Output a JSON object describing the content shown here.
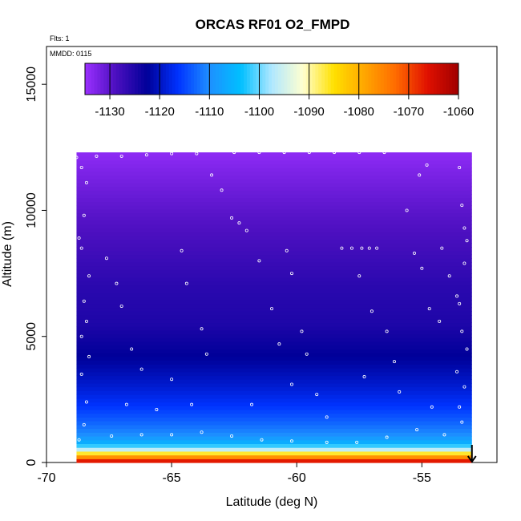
{
  "chart_data": {
    "type": "heatmap",
    "title": "ORCAS RF01 O2_FMPD",
    "xlabel": "Latitude (deg N)",
    "ylabel": "Altitude (m)",
    "xlim": [
      -70,
      -52
    ],
    "ylim": [
      0,
      16500
    ],
    "x_ticks": [
      -70,
      -65,
      -60,
      -55
    ],
    "y_ticks": [
      0,
      5000,
      10000,
      15000
    ],
    "annotations": {
      "flights": "Flts: 1",
      "date": "MMDD: 0115"
    },
    "colorbar": {
      "ticks": [
        -1130,
        -1120,
        -1110,
        -1100,
        -1090,
        -1080,
        -1070,
        -1060
      ],
      "range": [
        -1135,
        -1060
      ],
      "colors": [
        "#9b30ff",
        "#4b0fbf",
        "#000099",
        "#0033ff",
        "#1e90ff",
        "#00bfff",
        "#b0e8ff",
        "#ffffd0",
        "#ffe000",
        "#ffa500",
        "#ff6a00",
        "#e01000",
        "#a00000"
      ]
    },
    "field": {
      "lat_range": [
        -68.8,
        -53.0
      ],
      "alt_top": 12300,
      "profile": [
        {
          "alt": 0,
          "value": -1062
        },
        {
          "alt": 200,
          "value": -1075
        },
        {
          "alt": 400,
          "value": -1088
        },
        {
          "alt": 550,
          "value": -1098
        },
        {
          "alt": 800,
          "value": -1106
        },
        {
          "alt": 1100,
          "value": -1110
        },
        {
          "alt": 1600,
          "value": -1113
        },
        {
          "alt": 2200,
          "value": -1116
        },
        {
          "alt": 3000,
          "value": -1119
        },
        {
          "alt": 4000,
          "value": -1122
        },
        {
          "alt": 5500,
          "value": -1125
        },
        {
          "alt": 7000,
          "value": -1126
        },
        {
          "alt": 8500,
          "value": -1128
        },
        {
          "alt": 10000,
          "value": -1130
        },
        {
          "alt": 11200,
          "value": -1132
        },
        {
          "alt": 12300,
          "value": -1134
        }
      ]
    },
    "flight_points": [
      [
        -68.8,
        12100
      ],
      [
        -68,
        12150
      ],
      [
        -67,
        12150
      ],
      [
        -66,
        12200
      ],
      [
        -65,
        12250
      ],
      [
        -64,
        12250
      ],
      [
        -62.5,
        12300
      ],
      [
        -61.5,
        12300
      ],
      [
        -60.5,
        12300
      ],
      [
        -59.5,
        12300
      ],
      [
        -58.5,
        12300
      ],
      [
        -57.5,
        12300
      ],
      [
        -56.5,
        12300
      ],
      [
        -68.6,
        11700
      ],
      [
        -68.4,
        11100
      ],
      [
        -68.5,
        9800
      ],
      [
        -68.7,
        8900
      ],
      [
        -68.6,
        8500
      ],
      [
        -68.3,
        7400
      ],
      [
        -68.5,
        6400
      ],
      [
        -68.4,
        5600
      ],
      [
        -68.6,
        5000
      ],
      [
        -68.3,
        4200
      ],
      [
        -68.6,
        3500
      ],
      [
        -68.4,
        2400
      ],
      [
        -68.5,
        1500
      ],
      [
        -68.7,
        900
      ],
      [
        -67.6,
        8100
      ],
      [
        -67.2,
        7100
      ],
      [
        -67.0,
        6200
      ],
      [
        -66.6,
        4500
      ],
      [
        -66.2,
        3700
      ],
      [
        -65.6,
        2100
      ],
      [
        -65.0,
        3300
      ],
      [
        -64.6,
        8400
      ],
      [
        -64.4,
        7100
      ],
      [
        -63.8,
        5300
      ],
      [
        -63.6,
        4300
      ],
      [
        -63.4,
        11400
      ],
      [
        -63.0,
        10800
      ],
      [
        -62.6,
        9700
      ],
      [
        -62.3,
        9500
      ],
      [
        -62.0,
        9200
      ],
      [
        -61.5,
        8000
      ],
      [
        -61.0,
        6100
      ],
      [
        -60.7,
        4700
      ],
      [
        -60.4,
        8400
      ],
      [
        -60.2,
        7500
      ],
      [
        -59.8,
        5200
      ],
      [
        -59.6,
        4300
      ],
      [
        -59.2,
        2700
      ],
      [
        -58.8,
        1800
      ],
      [
        -58.2,
        8500
      ],
      [
        -57.8,
        8500
      ],
      [
        -57.4,
        8500
      ],
      [
        -57.1,
        8500
      ],
      [
        -56.8,
        8500
      ],
      [
        -57.5,
        7400
      ],
      [
        -57.0,
        6000
      ],
      [
        -56.4,
        5200
      ],
      [
        -56.1,
        4000
      ],
      [
        -55.6,
        10000
      ],
      [
        -55.3,
        8300
      ],
      [
        -55.0,
        7700
      ],
      [
        -54.7,
        6100
      ],
      [
        -54.3,
        5600
      ],
      [
        -54.8,
        11800
      ],
      [
        -55.1,
        11400
      ],
      [
        -54.2,
        8500
      ],
      [
        -53.9,
        7400
      ],
      [
        -53.6,
        6600
      ],
      [
        -53.5,
        11700
      ],
      [
        -53.4,
        10200
      ],
      [
        -53.3,
        9300
      ],
      [
        -53.2,
        8800
      ],
      [
        -53.3,
        7900
      ],
      [
        -53.5,
        6300
      ],
      [
        -53.4,
        5200
      ],
      [
        -53.2,
        4500
      ],
      [
        -53.6,
        3600
      ],
      [
        -53.3,
        3000
      ],
      [
        -53.5,
        2200
      ],
      [
        -53.4,
        1600
      ],
      [
        -54.1,
        1100
      ],
      [
        -55.2,
        1300
      ],
      [
        -56.4,
        1000
      ],
      [
        -57.6,
        800
      ],
      [
        -58.8,
        800
      ],
      [
        -60.2,
        850
      ],
      [
        -61.4,
        900
      ],
      [
        -62.6,
        1050
      ],
      [
        -63.8,
        1200
      ],
      [
        -65.0,
        1100
      ],
      [
        -66.2,
        1100
      ],
      [
        -67.4,
        1050
      ],
      [
        -66.8,
        2300
      ],
      [
        -64.2,
        2300
      ],
      [
        -61.8,
        2300
      ],
      [
        -60.2,
        3100
      ],
      [
        -57.3,
        3400
      ],
      [
        -55.9,
        2800
      ],
      [
        -54.6,
        2200
      ]
    ],
    "marker": {
      "lat": -53.0,
      "alt_top": 700
    }
  }
}
